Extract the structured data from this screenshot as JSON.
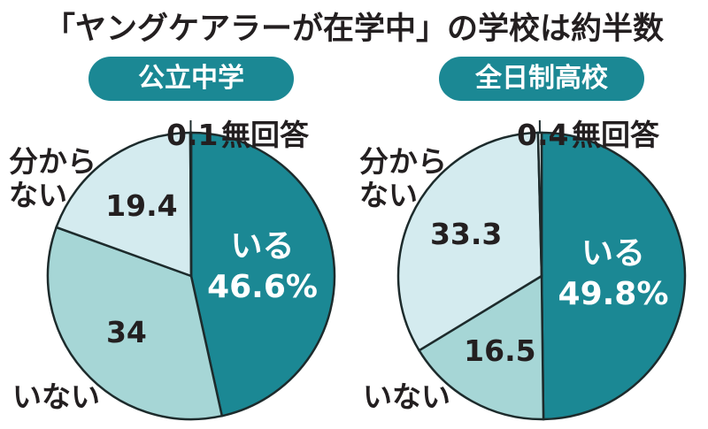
{
  "title": "「ヤングケアラーが在学中」の学校は約半数",
  "chart_data": [
    {
      "type": "pie",
      "title": "公立中学",
      "categories": [
        "いる",
        "いない",
        "分からない",
        "無回答"
      ],
      "values": [
        46.6,
        34,
        19.4,
        0.1
      ],
      "value_labels": [
        "46.6%",
        "34",
        "19.4",
        "0.1"
      ],
      "colors": [
        "#1b8894",
        "#a6d6d6",
        "#d4ebef",
        "#f4fafa"
      ]
    },
    {
      "type": "pie",
      "title": "全日制高校",
      "categories": [
        "いる",
        "いない",
        "分からない",
        "無回答"
      ],
      "values": [
        49.8,
        16.5,
        33.3,
        0.4
      ],
      "value_labels": [
        "49.8%",
        "16.5",
        "33.3",
        "0.4"
      ],
      "colors": [
        "#1b8894",
        "#a6d6d6",
        "#d4ebef",
        "#f4fafa"
      ]
    }
  ]
}
